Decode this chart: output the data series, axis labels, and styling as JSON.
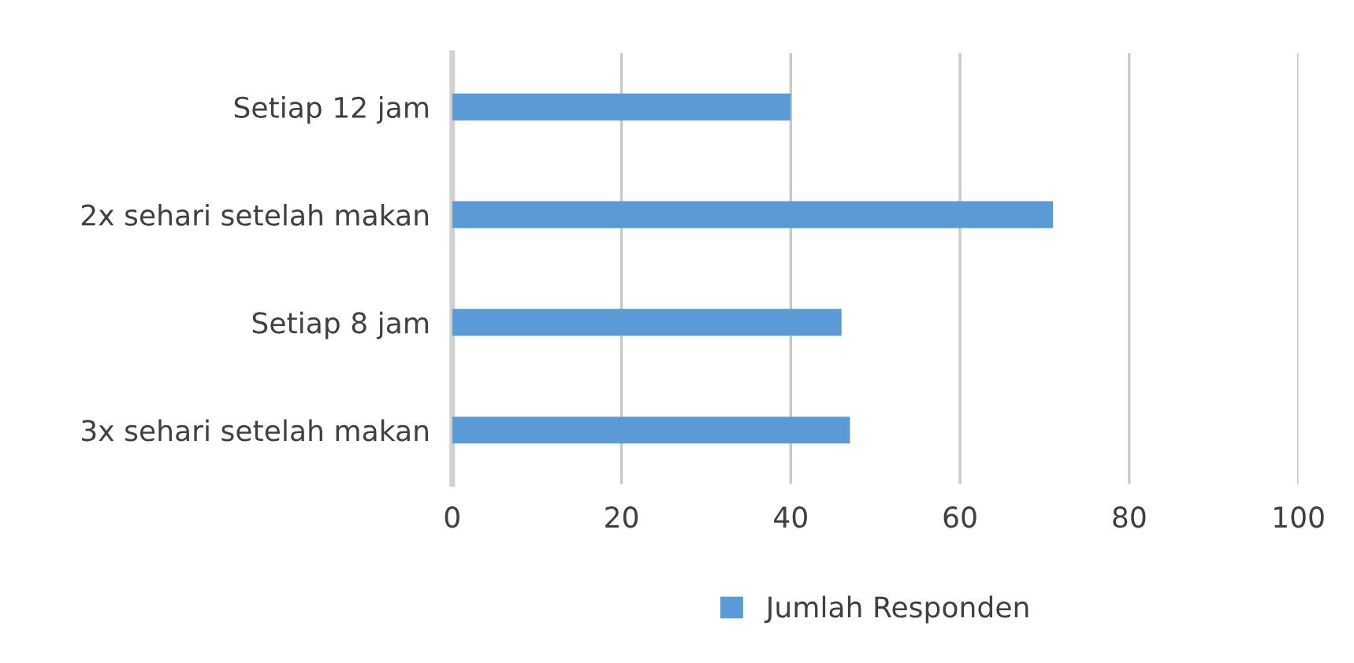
{
  "chart_data": {
    "type": "bar",
    "orientation": "horizontal",
    "categories": [
      "Setiap 12 jam",
      "2x sehari setelah makan",
      "Setiap 8 jam",
      "3x sehari setelah makan"
    ],
    "series": [
      {
        "name": "Jumlah Responden",
        "color": "#5b9bd5",
        "values": [
          40,
          71,
          46,
          47
        ]
      }
    ],
    "xlim": [
      0,
      100
    ],
    "xticks": [
      0,
      20,
      40,
      60,
      80,
      100
    ],
    "grid": "x",
    "legend": "bottom"
  }
}
